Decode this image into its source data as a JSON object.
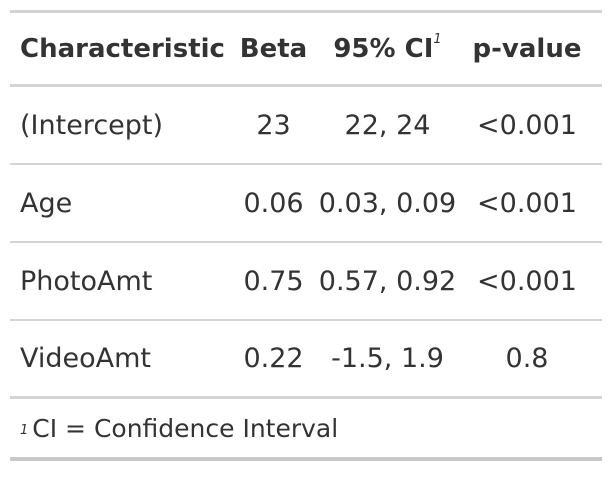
{
  "table": {
    "headers": {
      "characteristic": "Characteristic",
      "beta": "Beta",
      "ci": "95% CI",
      "ci_marker": "1",
      "pvalue": "p-value"
    },
    "rows": [
      {
        "characteristic": "(Intercept)",
        "beta": "23",
        "ci": "22, 24",
        "pvalue": "<0.001"
      },
      {
        "characteristic": "Age",
        "beta": "0.06",
        "ci": "0.03, 0.09",
        "pvalue": "<0.001"
      },
      {
        "characteristic": "PhotoAmt",
        "beta": "0.75",
        "ci": "0.57, 0.92",
        "pvalue": "<0.001"
      },
      {
        "characteristic": "VideoAmt",
        "beta": "0.22",
        "ci": "-1.5, 1.9",
        "pvalue": "0.8"
      }
    ],
    "footnote": {
      "marker": "1",
      "text": "CI = Confidence Interval"
    }
  }
}
